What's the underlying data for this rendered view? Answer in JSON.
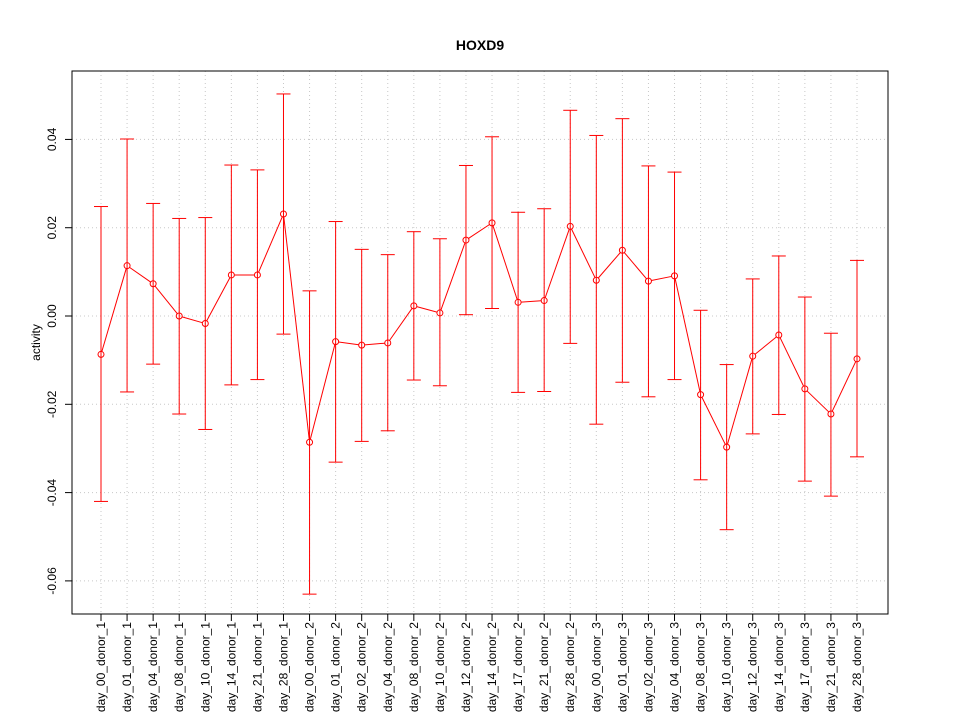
{
  "chart_data": {
    "type": "line",
    "title": "HOXD9",
    "xlabel": "",
    "ylabel": "activity",
    "ylim": [
      -0.0675,
      0.0555
    ],
    "yticks": [
      -0.06,
      -0.04,
      -0.02,
      0.0,
      0.02,
      0.04
    ],
    "ytick_labels": [
      "-0.06",
      "-0.04",
      "-0.02",
      "0.00",
      "0.02",
      "0.04"
    ],
    "grid": true,
    "series_color": "#ff0000",
    "grid_color": "#c8c8c8",
    "categories": [
      "day_00_donor_1",
      "day_01_donor_1",
      "day_04_donor_1",
      "day_08_donor_1",
      "day_10_donor_1",
      "day_14_donor_1",
      "day_21_donor_1",
      "day_28_donor_1",
      "day_00_donor_2",
      "day_01_donor_2",
      "day_02_donor_2",
      "day_04_donor_2",
      "day_08_donor_2",
      "day_10_donor_2",
      "day_12_donor_2",
      "day_14_donor_2",
      "day_17_donor_2",
      "day_21_donor_2",
      "day_28_donor_2",
      "day_00_donor_3",
      "day_01_donor_3",
      "day_02_donor_3",
      "day_04_donor_3",
      "day_08_donor_3",
      "day_10_donor_3",
      "day_12_donor_3",
      "day_14_donor_3",
      "day_17_donor_3",
      "day_21_donor_3",
      "day_28_donor_3"
    ],
    "values": [
      -0.0087,
      0.0114,
      0.0073,
      0.0,
      -0.0017,
      0.0093,
      0.0093,
      0.0231,
      -0.0286,
      -0.0058,
      -0.0066,
      -0.0061,
      0.0023,
      0.0007,
      0.0172,
      0.0211,
      0.0031,
      0.0035,
      0.0203,
      0.0081,
      0.0149,
      0.0079,
      0.0091,
      -0.0178,
      -0.0297,
      -0.0091,
      -0.0043,
      -0.0165,
      -0.0222,
      -0.0097
    ],
    "upper": [
      0.0248,
      0.0401,
      0.0255,
      0.0221,
      0.0223,
      0.0342,
      0.0331,
      0.0503,
      0.0057,
      0.0214,
      0.0151,
      0.0139,
      0.0191,
      0.0175,
      0.0341,
      0.0406,
      0.0235,
      0.0243,
      0.0466,
      0.0409,
      0.0447,
      0.034,
      0.0326,
      0.0013,
      -0.011,
      0.0084,
      0.0136,
      0.0043,
      -0.0039,
      0.0126
    ],
    "lower": [
      -0.042,
      -0.0172,
      -0.0109,
      -0.0222,
      -0.0257,
      -0.0156,
      -0.0144,
      -0.0041,
      -0.063,
      -0.0331,
      -0.0284,
      -0.026,
      -0.0145,
      -0.0158,
      0.0003,
      0.0017,
      -0.0173,
      -0.0171,
      -0.0062,
      -0.0245,
      -0.015,
      -0.0183,
      -0.0144,
      -0.0371,
      -0.0484,
      -0.0267,
      -0.0223,
      -0.0374,
      -0.0408,
      -0.0319
    ]
  }
}
